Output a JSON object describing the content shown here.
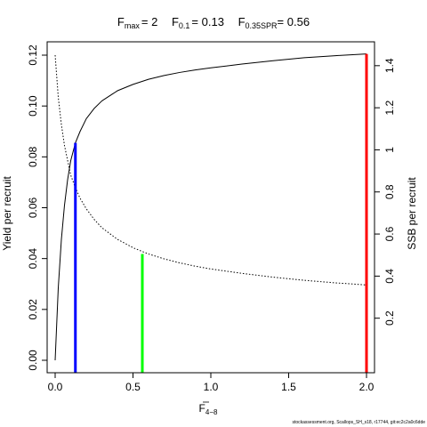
{
  "chart_data": {
    "type": "line",
    "title_parts": {
      "fmax_label": "F",
      "fmax_sub": "max",
      "fmax_value": "= 2",
      "f01_label": "F",
      "f01_sub": "0.1",
      "f01_value": "= 0.13",
      "fspr_label": "F",
      "fspr_sub": "0.35SPR",
      "fspr_value": "= 0.56"
    },
    "xlabel": "F",
    "xlabel_bar": "̅",
    "xlabel_sub": "4−8",
    "ylabel_left": "Yield per recruit",
    "ylabel_right": "SSB per recruit",
    "xlim": [
      0,
      2
    ],
    "ylim_left": [
      0,
      0.12
    ],
    "ylim_right": [
      0,
      1.45
    ],
    "x_ticks": [
      0,
      0.5,
      1,
      1.5,
      2
    ],
    "x_tick_labels": [
      "0.0",
      "0.5",
      "1.0",
      "1.5",
      "2.0"
    ],
    "y_left_ticks": [
      0,
      0.02,
      0.04,
      0.06,
      0.08,
      0.1,
      0.12
    ],
    "y_left_tick_labels": [
      "0.00",
      "0.02",
      "0.04",
      "0.06",
      "0.08",
      "0.10",
      "0.12"
    ],
    "y_right_ticks": [
      0.2,
      0.4,
      0.6,
      0.8,
      1,
      1.2,
      1.4
    ],
    "y_right_tick_labels": [
      "0.2",
      "0.4",
      "0.6",
      "0.8",
      "1",
      "1.2",
      "1.4"
    ],
    "series": [
      {
        "style": "solid",
        "axis": "left",
        "x": [
          0,
          0.02,
          0.04,
          0.06,
          0.08,
          0.1,
          0.13,
          0.16,
          0.2,
          0.25,
          0.3,
          0.4,
          0.5,
          0.6,
          0.7,
          0.8,
          0.9,
          1.0,
          1.2,
          1.4,
          1.6,
          1.8,
          2.0
        ],
        "y": [
          0,
          0.0285,
          0.0475,
          0.061,
          0.071,
          0.0785,
          0.0855,
          0.09,
          0.095,
          0.099,
          0.102,
          0.106,
          0.1085,
          0.1105,
          0.112,
          0.1132,
          0.1142,
          0.115,
          0.1165,
          0.1178,
          0.119,
          0.1198,
          0.1205
        ]
      },
      {
        "style": "dotted",
        "axis": "right",
        "x": [
          0,
          0.02,
          0.04,
          0.06,
          0.08,
          0.1,
          0.13,
          0.16,
          0.2,
          0.25,
          0.3,
          0.4,
          0.5,
          0.6,
          0.7,
          0.8,
          0.9,
          1.0,
          1.2,
          1.4,
          1.6,
          1.8,
          2.0
        ],
        "y": [
          1.45,
          1.25,
          1.12,
          1.02,
          0.95,
          0.88,
          0.82,
          0.77,
          0.72,
          0.67,
          0.63,
          0.575,
          0.535,
          0.505,
          0.482,
          0.463,
          0.447,
          0.434,
          0.413,
          0.395,
          0.38,
          0.368,
          0.358
        ]
      }
    ],
    "reference_lines": [
      {
        "x": 0.13,
        "y_left": 0.0855,
        "color": "#0000ff"
      },
      {
        "x": 0.56,
        "y_right": 0.505,
        "color": "#00ff00"
      },
      {
        "x": 2.0,
        "y_left": 0.1205,
        "color": "#ff0000"
      }
    ]
  },
  "footer": "stockassessment.org, Scallops_SH_s18, r17744, git:ec2c2a0c6dde"
}
